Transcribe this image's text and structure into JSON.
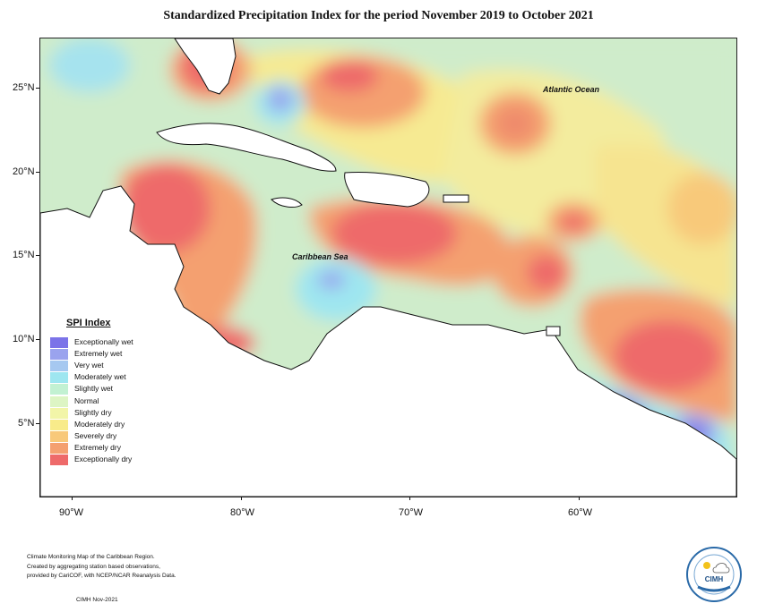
{
  "title": "Standardized Precipitation Index for the period November 2019 to October 2021",
  "map": {
    "ocean_labels": {
      "atlantic": "Atlantic Ocean",
      "caribbean": "Caribbean Sea"
    },
    "lat_ticks": [
      "25°N",
      "20°N",
      "15°N",
      "10°N",
      "5°N"
    ],
    "lon_ticks": [
      "90°W",
      "80°W",
      "70°W",
      "60°W"
    ],
    "background_color": "#cfeccb",
    "land_color": "#ffffff"
  },
  "legend": {
    "title": "SPI Index",
    "items": [
      {
        "label": "Exceptionally wet",
        "color": "#7b73e8"
      },
      {
        "label": "Extremely wet",
        "color": "#9aa3ee"
      },
      {
        "label": "Very wet",
        "color": "#a6c8f0"
      },
      {
        "label": "Moderately wet",
        "color": "#9ee6f0"
      },
      {
        "label": "Slightly wet",
        "color": "#c2f1d2"
      },
      {
        "label": "Normal",
        "color": "#ddf5c4"
      },
      {
        "label": "Slightly dry",
        "color": "#f2f5a8"
      },
      {
        "label": "Moderately dry",
        "color": "#f8eb8a"
      },
      {
        "label": "Severely dry",
        "color": "#f8c97a"
      },
      {
        "label": "Extremely dry",
        "color": "#f4a070"
      },
      {
        "label": "Exceptionally dry",
        "color": "#ee6a6a"
      }
    ]
  },
  "credits": {
    "line1": "Climate Monitoring Map of the Caribbean Region.",
    "line2": "Created by aggregating station based observations,",
    "line3": "provided by CariCOF, with NCEP/NCAR Reanalysis Data.",
    "footer": "CIMH Nov-2021"
  },
  "logo": {
    "text": "CIMH"
  }
}
